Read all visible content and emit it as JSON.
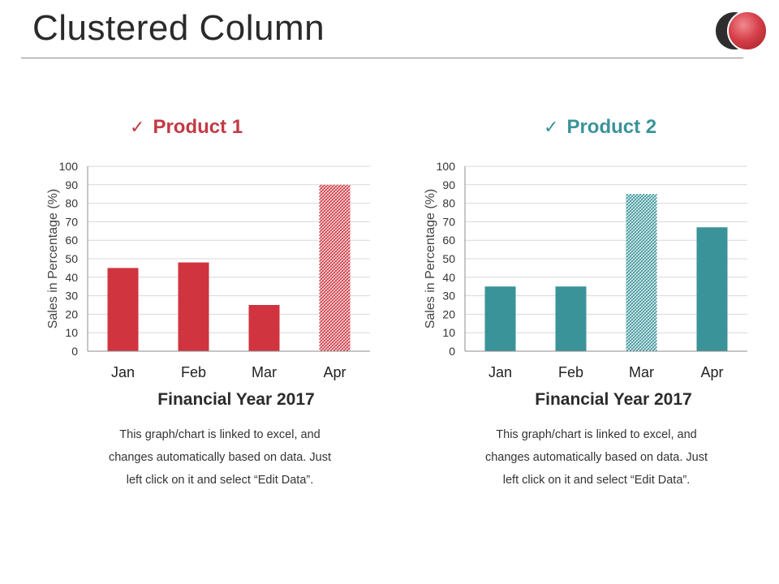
{
  "page": {
    "title": "Clustered Column"
  },
  "colors": {
    "product1": "#d0343f",
    "product2": "#3a9399",
    "grid": "#d9d9d9",
    "axis": "#8c8c8c"
  },
  "chart_data": [
    {
      "type": "bar",
      "title": "Product 1",
      "check_icon": "✓",
      "categories": [
        "Jan",
        "Feb",
        "Mar",
        "Apr"
      ],
      "values": [
        45,
        48,
        25,
        90
      ],
      "highlight": [
        false,
        false,
        false,
        true
      ],
      "xlabel": "Financial Year 2017",
      "ylabel": "Sales in Percentage (%)",
      "ylim": [
        0,
        100
      ],
      "yticks": [
        0,
        10,
        20,
        30,
        40,
        50,
        60,
        70,
        80,
        90,
        100
      ],
      "color": "#d0343f",
      "grid": true,
      "note": [
        "This graph/chart is linked to excel, and",
        "changes automatically based on data. Just",
        "left click on it and select “Edit Data”."
      ]
    },
    {
      "type": "bar",
      "title": "Product 2",
      "check_icon": "✓",
      "categories": [
        "Jan",
        "Feb",
        "Mar",
        "Apr"
      ],
      "values": [
        35,
        35,
        85,
        67
      ],
      "highlight": [
        false,
        false,
        true,
        false
      ],
      "xlabel": "Financial Year 2017",
      "ylabel": "Sales in Percentage (%)",
      "ylim": [
        0,
        100
      ],
      "yticks": [
        0,
        10,
        20,
        30,
        40,
        50,
        60,
        70,
        80,
        90,
        100
      ],
      "color": "#3a9399",
      "grid": true,
      "note": [
        "This graph/chart is linked to excel, and",
        "changes automatically based on data. Just",
        "left click on it and select “Edit Data”."
      ]
    }
  ]
}
